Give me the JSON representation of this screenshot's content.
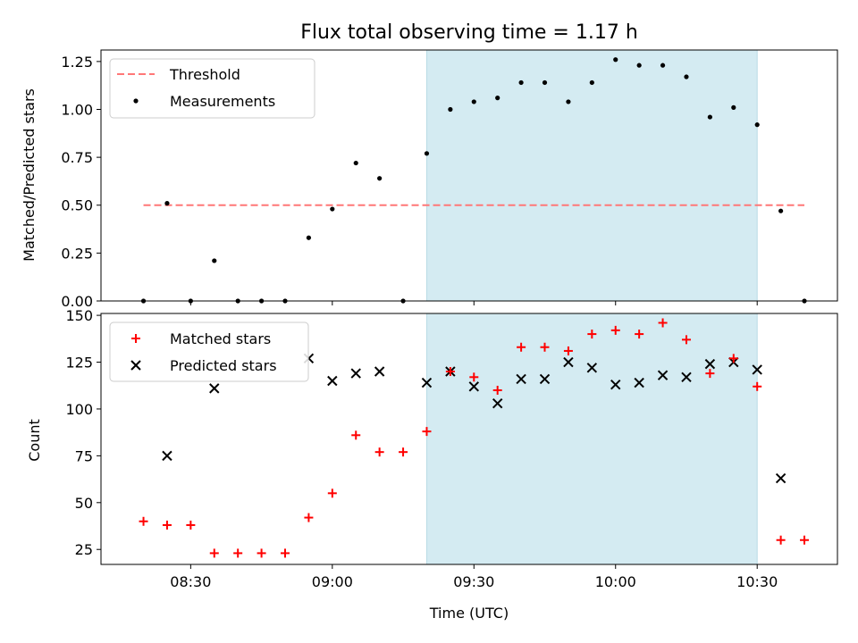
{
  "chart_data": [
    {
      "type": "scatter",
      "title": "Flux total observing time = 1.17 h",
      "xlabel": "",
      "ylabel": "Matched/Predicted stars",
      "ylim": [
        0,
        1.31
      ],
      "yticks": [
        "0.00",
        "0.25",
        "0.50",
        "0.75",
        "1.00",
        "1.25"
      ],
      "legend": {
        "placement": "top-left",
        "entries": [
          "Threshold",
          "Measurements"
        ]
      },
      "threshold": {
        "name": "Threshold",
        "value": 0.5,
        "x_start": "08:20",
        "x_end": "10:40",
        "color": "#ff7777"
      },
      "shaded_region": {
        "x_start": "09:20",
        "x_end": "10:30",
        "color": "#d4ebf2"
      },
      "series": [
        {
          "name": "Measurements",
          "color": "#000000",
          "x": [
            "08:20",
            "08:25",
            "08:30",
            "08:35",
            "08:40",
            "08:45",
            "08:50",
            "08:55",
            "09:00",
            "09:05",
            "09:10",
            "09:15",
            "09:20",
            "09:25",
            "09:30",
            "09:35",
            "09:40",
            "09:45",
            "09:50",
            "09:55",
            "10:00",
            "10:05",
            "10:10",
            "10:15",
            "10:20",
            "10:25",
            "10:30",
            "10:35",
            "10:40"
          ],
          "y": [
            0.0,
            0.51,
            0.0,
            0.21,
            0.0,
            0.0,
            0.0,
            0.33,
            0.48,
            0.72,
            0.64,
            0.0,
            0.77,
            1.0,
            1.04,
            1.06,
            1.14,
            1.14,
            1.04,
            1.14,
            1.26,
            1.23,
            1.23,
            1.17,
            0.96,
            1.01,
            0.92,
            0.47,
            0.0
          ]
        }
      ]
    },
    {
      "type": "scatter",
      "title": "",
      "xlabel": "Time (UTC)",
      "ylabel": "Count",
      "ylim": [
        17,
        151
      ],
      "yticks": [
        "25",
        "50",
        "75",
        "100",
        "125",
        "150"
      ],
      "xlim": [
        "08:11",
        "10:47"
      ],
      "xticks": [
        "08:30",
        "09:00",
        "09:30",
        "10:00",
        "10:30"
      ],
      "legend": {
        "placement": "top-left",
        "entries": [
          "Matched stars",
          "Predicted stars"
        ]
      },
      "shaded_region": {
        "x_start": "09:20",
        "x_end": "10:30",
        "color": "#d4ebf2"
      },
      "series": [
        {
          "name": "Matched stars",
          "marker": "plus",
          "color": "#ff0000",
          "x": [
            "08:20",
            "08:25",
            "08:30",
            "08:35",
            "08:40",
            "08:45",
            "08:50",
            "08:55",
            "09:00",
            "09:05",
            "09:10",
            "09:15",
            "09:20",
            "09:25",
            "09:30",
            "09:35",
            "09:40",
            "09:45",
            "09:50",
            "09:55",
            "10:00",
            "10:05",
            "10:10",
            "10:15",
            "10:20",
            "10:25",
            "10:30",
            "10:35",
            "10:40"
          ],
          "y": [
            40,
            38,
            38,
            23,
            23,
            23,
            23,
            42,
            55,
            86,
            77,
            77,
            88,
            120,
            117,
            110,
            133,
            133,
            131,
            140,
            142,
            140,
            146,
            137,
            119,
            127,
            112,
            30,
            30
          ]
        },
        {
          "name": "Predicted stars",
          "marker": "x",
          "color": "#000000",
          "x": [
            "08:25",
            "08:35",
            "08:55",
            "09:00",
            "09:05",
            "09:10",
            "09:20",
            "09:25",
            "09:30",
            "09:35",
            "09:40",
            "09:45",
            "09:50",
            "09:55",
            "10:00",
            "10:05",
            "10:10",
            "10:15",
            "10:20",
            "10:25",
            "10:30",
            "10:35"
          ],
          "y": [
            75,
            111,
            127,
            115,
            119,
            120,
            114,
            120,
            112,
            103,
            116,
            116,
            125,
            122,
            113,
            114,
            118,
            117,
            124,
            125,
            121,
            63
          ]
        }
      ]
    }
  ]
}
